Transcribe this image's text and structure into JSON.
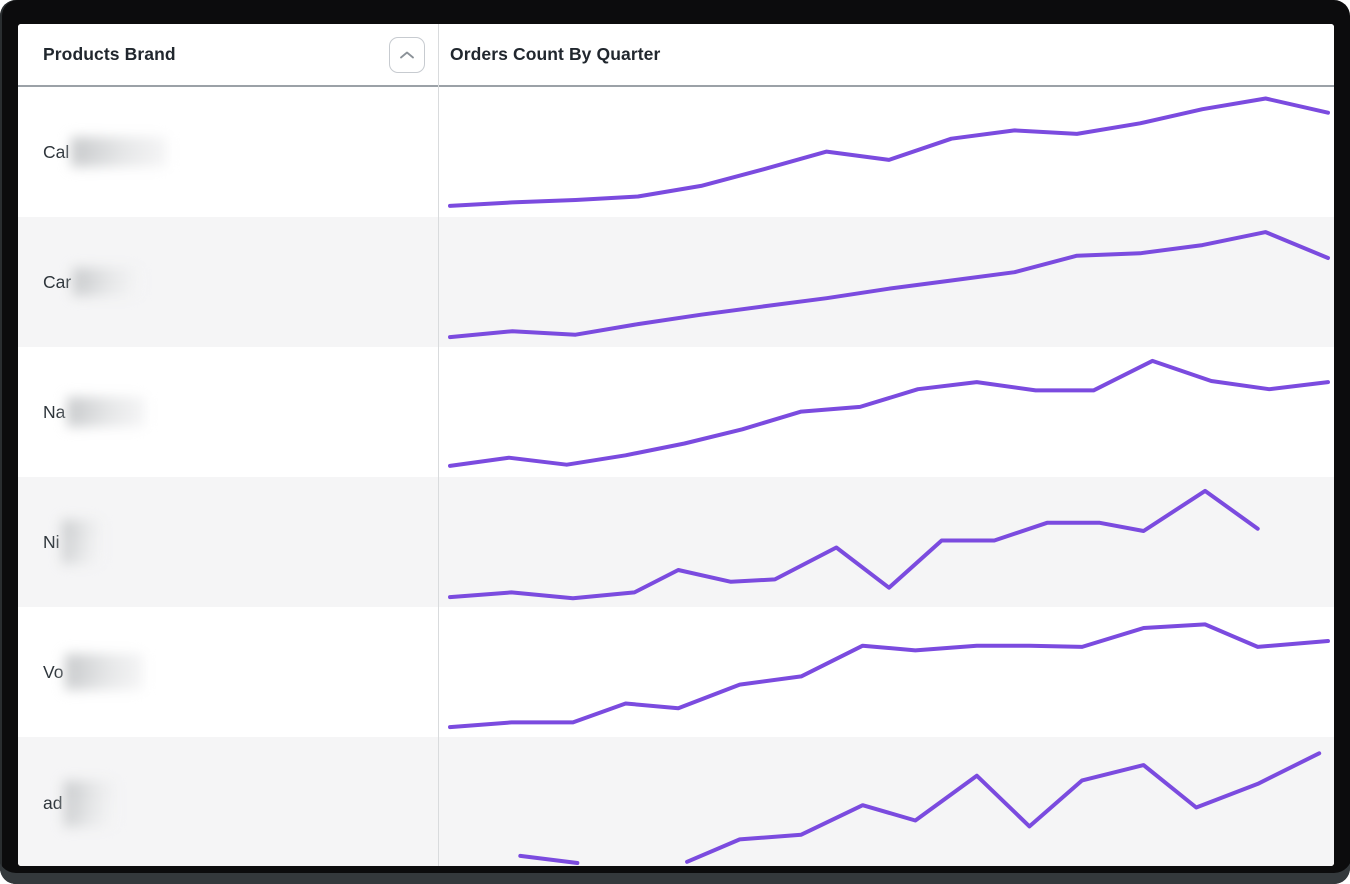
{
  "header": {
    "products_brand": "Products Brand",
    "orders_count": "Orders Count By Quarter",
    "sort": {
      "column": "Products Brand",
      "state": "ascending",
      "icon": "chevron-up"
    }
  },
  "colors": {
    "sparkline": "#7B4BDF",
    "alt_row_bg": "#F5F5F6",
    "header_text": "#21272E",
    "row_label_text": "#2E353B",
    "column_divider": "#D9DBDD",
    "header_border": "#9BA1A7",
    "sort_icon": "#8B9298",
    "window_frame": "#0C0C0D"
  },
  "rows": [
    {
      "brand_prefix": "Cal",
      "redacted": true,
      "redact_w": 96,
      "redact_h": 30
    },
    {
      "brand_prefix": "Car",
      "redacted": true,
      "redact_w": 66,
      "redact_h": 28
    },
    {
      "brand_prefix": "Na",
      "redacted": true,
      "redact_w": 78,
      "redact_h": 30
    },
    {
      "brand_prefix": "Ni",
      "redacted": true,
      "redact_w": 38,
      "redact_h": 44
    },
    {
      "brand_prefix": "Vo",
      "redacted": true,
      "redact_w": 78,
      "redact_h": 36
    },
    {
      "brand_prefix": "ad",
      "redacted": true,
      "redact_w": 50,
      "redact_h": 46
    }
  ],
  "chart_data": {
    "type": "line",
    "title": "Orders Count By Quarter",
    "xlabel": "quarter (ticks not shown)",
    "ylabel": "orders count (axis not shown, values normalized 0-100)",
    "grid": false,
    "legend": false,
    "x_range": [
      0,
      1
    ],
    "y_range": [
      0,
      100
    ],
    "series": [
      {
        "name": "Cal…",
        "segments": [
          [
            [
              0,
              6
            ],
            [
              0.071,
              9
            ],
            [
              0.143,
              11
            ],
            [
              0.214,
              14
            ],
            [
              0.286,
              23
            ],
            [
              0.357,
              37
            ],
            [
              0.429,
              52
            ],
            [
              0.5,
              45
            ],
            [
              0.571,
              63
            ],
            [
              0.643,
              70
            ],
            [
              0.714,
              67
            ],
            [
              0.786,
              76
            ],
            [
              0.857,
              88
            ],
            [
              0.929,
              97
            ],
            [
              1,
              85
            ]
          ]
        ]
      },
      {
        "name": "Car…",
        "segments": [
          [
            [
              0,
              5
            ],
            [
              0.071,
              10
            ],
            [
              0.143,
              7
            ],
            [
              0.214,
              16
            ],
            [
              0.286,
              24
            ],
            [
              0.357,
              31
            ],
            [
              0.429,
              38
            ],
            [
              0.5,
              46
            ],
            [
              0.571,
              53
            ],
            [
              0.643,
              60
            ],
            [
              0.714,
              74
            ],
            [
              0.786,
              76
            ],
            [
              0.857,
              83
            ],
            [
              0.929,
              94
            ],
            [
              1,
              72
            ]
          ]
        ]
      },
      {
        "name": "Na…",
        "segments": [
          [
            [
              0,
              6
            ],
            [
              0.067,
              13
            ],
            [
              0.133,
              7
            ],
            [
              0.2,
              15
            ],
            [
              0.267,
              25
            ],
            [
              0.333,
              37
            ],
            [
              0.4,
              52
            ],
            [
              0.467,
              56
            ],
            [
              0.533,
              71
            ],
            [
              0.6,
              77
            ],
            [
              0.667,
              70
            ],
            [
              0.733,
              70
            ],
            [
              0.8,
              95
            ],
            [
              0.867,
              78
            ],
            [
              0.933,
              71
            ],
            [
              1,
              77
            ]
          ]
        ]
      },
      {
        "name": "Ni…",
        "segments": [
          [
            [
              0,
              5
            ],
            [
              0.07,
              9
            ],
            [
              0.14,
              4
            ],
            [
              0.21,
              9
            ],
            [
              0.26,
              28
            ],
            [
              0.32,
              18
            ],
            [
              0.37,
              20
            ],
            [
              0.44,
              47
            ],
            [
              0.5,
              13
            ],
            [
              0.56,
              53
            ],
            [
              0.62,
              53
            ],
            [
              0.68,
              68
            ],
            [
              0.74,
              68
            ],
            [
              0.79,
              61
            ],
            [
              0.86,
              95
            ],
            [
              0.92,
              63
            ]
          ]
        ]
      },
      {
        "name": "Vo…",
        "segments": [
          [
            [
              0,
              5
            ],
            [
              0.07,
              9
            ],
            [
              0.14,
              9
            ],
            [
              0.2,
              25
            ],
            [
              0.26,
              21
            ],
            [
              0.33,
              41
            ],
            [
              0.4,
              48
            ],
            [
              0.47,
              74
            ],
            [
              0.53,
              70
            ],
            [
              0.6,
              74
            ],
            [
              0.66,
              74
            ],
            [
              0.72,
              73
            ],
            [
              0.79,
              89
            ],
            [
              0.86,
              92
            ],
            [
              0.92,
              73
            ],
            [
              1,
              78
            ]
          ]
        ]
      },
      {
        "name": "ad…",
        "segments": [
          [
            [
              0.08,
              6
            ],
            [
              0.145,
              0
            ]
          ],
          [
            [
              0.27,
              1
            ],
            [
              0.33,
              20
            ],
            [
              0.4,
              24
            ],
            [
              0.47,
              49
            ],
            [
              0.53,
              36
            ],
            [
              0.6,
              74
            ],
            [
              0.66,
              31
            ],
            [
              0.72,
              70
            ],
            [
              0.79,
              83
            ],
            [
              0.85,
              47
            ],
            [
              0.92,
              67
            ],
            [
              0.99,
              93
            ]
          ]
        ]
      }
    ]
  }
}
